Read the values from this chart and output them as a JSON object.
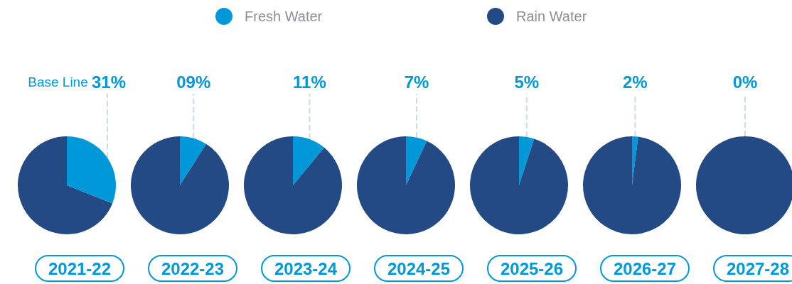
{
  "chart_data": [
    {
      "type": "pie",
      "title": "2021-22",
      "categories": [
        "Fresh Water",
        "Rain Water"
      ],
      "values": [
        31,
        69
      ],
      "colors": [
        "#0098d8",
        "#234a85"
      ],
      "value_labels": [
        "31%",
        null
      ],
      "annotations": [
        "Base Line"
      ],
      "legend": "top"
    },
    {
      "type": "pie",
      "title": "2022-23",
      "categories": [
        null,
        null
      ],
      "values": [
        9,
        91
      ],
      "colors": [
        "#0098d8",
        "#234a85"
      ],
      "value_labels": [
        "09%",
        null
      ]
    },
    {
      "type": "pie",
      "title": "2023-24",
      "categories": [
        null,
        null
      ],
      "values": [
        11,
        89
      ],
      "colors": [
        "#0098d8",
        "#234a85"
      ],
      "value_labels": [
        "11%",
        null
      ]
    },
    {
      "type": "pie",
      "title": "2024-25",
      "categories": [
        null,
        null
      ],
      "values": [
        7,
        93
      ],
      "colors": [
        "#0098d8",
        "#234a85"
      ],
      "value_labels": [
        "7%",
        null
      ]
    },
    {
      "type": "pie",
      "title": "2025-26",
      "categories": [
        null,
        null
      ],
      "values": [
        5,
        95
      ],
      "colors": [
        "#0098d8",
        "#234a85"
      ],
      "value_labels": [
        "5%",
        null
      ]
    },
    {
      "type": "pie",
      "title": "2026-27",
      "categories": [
        null,
        null
      ],
      "values": [
        2,
        98
      ],
      "colors": [
        "#0098d8",
        "#234a85"
      ],
      "value_labels": [
        "2%",
        null
      ]
    },
    {
      "type": "pie",
      "title": "2027-28",
      "categories": [
        null,
        null
      ],
      "values": [
        0,
        100
      ],
      "colors": [
        "#0098d8",
        "#234a85"
      ],
      "value_labels": [
        "0%",
        null
      ]
    }
  ]
}
